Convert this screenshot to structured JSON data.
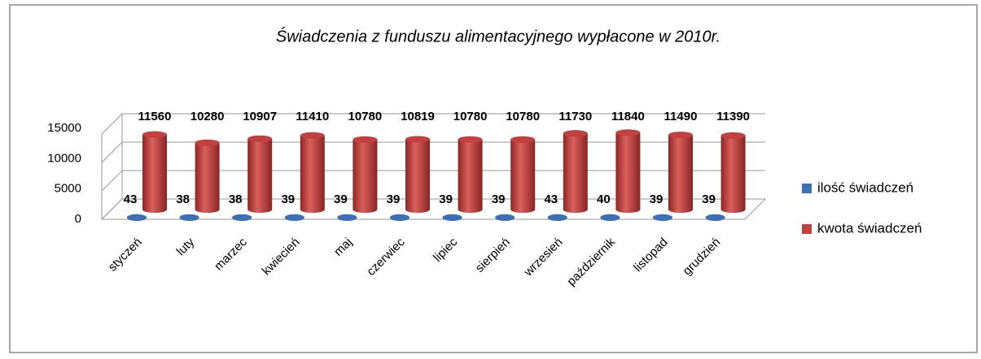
{
  "chart_data": {
    "type": "bar3d",
    "title": "Świadczenia z funduszu alimentacyjnego wypłacone w 2010r.",
    "categories": [
      "styczeń",
      "luty",
      "marzec",
      "kwiecień",
      "maj",
      "czerwiec",
      "lipiec",
      "sierpień",
      "wrzesień",
      "październik",
      "listopad",
      "grudzień"
    ],
    "series": [
      {
        "name": "ilość świadczeń",
        "color": "#3c6fb6",
        "values": [
          43,
          38,
          38,
          39,
          39,
          39,
          39,
          39,
          43,
          40,
          39,
          39
        ]
      },
      {
        "name": "kwota świadczeń",
        "color": "#c0413f",
        "values": [
          11560,
          10280,
          10907,
          11410,
          10780,
          10819,
          10780,
          10780,
          11730,
          11840,
          11490,
          11390
        ]
      }
    ],
    "ylim": [
      0,
      15000
    ],
    "yticks": [
      0,
      5000,
      10000,
      15000
    ],
    "grid": true,
    "legend": "right"
  }
}
